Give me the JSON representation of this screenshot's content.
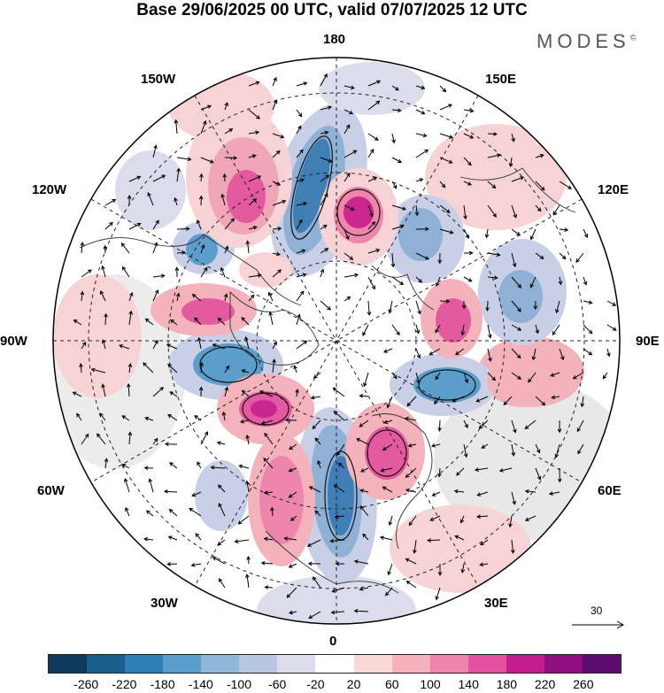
{
  "title": "Base 29/06/2025 00 UTC, valid 07/07/2025 12 UTC",
  "brand": "MODES",
  "brand_mark": "©",
  "longitude_labels": {
    "top": "180",
    "top_right": "150E",
    "upper_right": "120E",
    "right": "90E",
    "lower_right": "60E",
    "bottom_right": "30E",
    "bottom": "0",
    "bottom_left": "30W",
    "lower_left": "60W",
    "left": "90W",
    "upper_left": "120W",
    "top_left": "150W"
  },
  "reference_vector": "30",
  "colorbar": {
    "ticks": [
      "-260",
      "-220",
      "-180",
      "-140",
      "-100",
      "-60",
      "-20",
      "20",
      "60",
      "100",
      "140",
      "180",
      "220",
      "260"
    ],
    "colors": [
      "#0f3a5c",
      "#1a5e8c",
      "#2f7fb5",
      "#5b9ecb",
      "#8fb6d8",
      "#b9c6e1",
      "#dcdcec",
      "#ffffff",
      "#f9d8d8",
      "#f4b3bb",
      "#ee86ab",
      "#e3529e",
      "#c41e8c",
      "#8e0f7d",
      "#5a0c6f"
    ]
  },
  "field_colors": {
    "land_gray": "#e6e6e6",
    "pink_light": "#f7d3d6",
    "pink_mid": "#f0a6b6",
    "pink_dark": "#e45aa0",
    "magenta": "#c9268f",
    "blue_light": "#c8cfe6",
    "blue_mid": "#8fb1d6",
    "blue_dark": "#3f7fb6"
  }
}
